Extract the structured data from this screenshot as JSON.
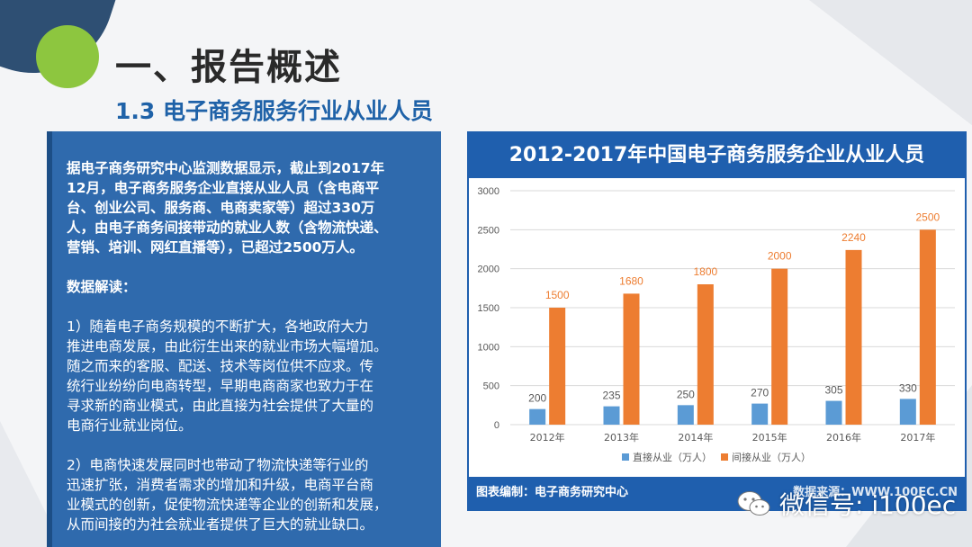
{
  "slide": {
    "title": "一、报告概述",
    "subtitle": "1.3 电子商务服务行业从业人员"
  },
  "text_panel": {
    "paragraphs": [
      {
        "text": "据电子商务研究中心监测数据显示，截止到2017年\n12月，电子商务服务企业直接从业人员（含电商平\n台、创业公司、服务商、电商卖家等）超过330万\n人，由电子商务间接带动的就业人数（含物流快递、\n营销、培训、网红直播等），已超过2500万人。",
        "bold": true
      },
      {
        "text": "数据解读：",
        "bold": true
      },
      {
        "text": "1）随着电子商务规模的不断扩大，各地政府大力\n推进电商发展，由此衍生出来的就业市场大幅增加。\n随之而来的客服、配送、技术等岗位供不应求。传\n统行业纷纷向电商转型，早期电商商家也致力于在\n寻求新的商业模式，由此直接为社会提供了大量的\n电商行业就业岗位。",
        "bold": false
      },
      {
        "text": "2）电商快速发展同时也带动了物流快递等行业的\n迅速扩张，消费者需求的增加和升级，电商平台商\n业模式的创新，促使物流快递等企业的创新和发展，\n从而间接的为社会就业者提供了巨大的就业缺口。",
        "bold": false
      }
    ]
  },
  "chart_header": "2012-2017年中国电子商务服务企业从业人员",
  "chart_footer": {
    "left": "图表编制：电子商务研究中心",
    "right": "数据来源：WWW.100EC.CN"
  },
  "watermark": {
    "text": "微信号: i100ec",
    "icon": "wechat-icon"
  },
  "colors": {
    "direct": "#5b9bd5",
    "indirect": "#ed7d31",
    "panel": "#2f6aad",
    "header": "#1f5fae"
  },
  "chart_data": {
    "type": "bar",
    "categories": [
      "2012年",
      "2013年",
      "2014年",
      "2015年",
      "2016年",
      "2017年"
    ],
    "series": [
      {
        "name": "直接从业（万人）",
        "values": [
          200,
          235,
          250,
          270,
          305,
          330
        ]
      },
      {
        "name": "间接从业（万人）",
        "values": [
          1500,
          1680,
          1800,
          2000,
          2240,
          2500
        ]
      }
    ],
    "title": "",
    "xlabel": "",
    "ylabel": "",
    "ylim": [
      0,
      3000
    ],
    "yticks": [
      0,
      500,
      1000,
      1500,
      2000,
      2500,
      3000
    ],
    "grid": true,
    "legend": "bottom"
  }
}
